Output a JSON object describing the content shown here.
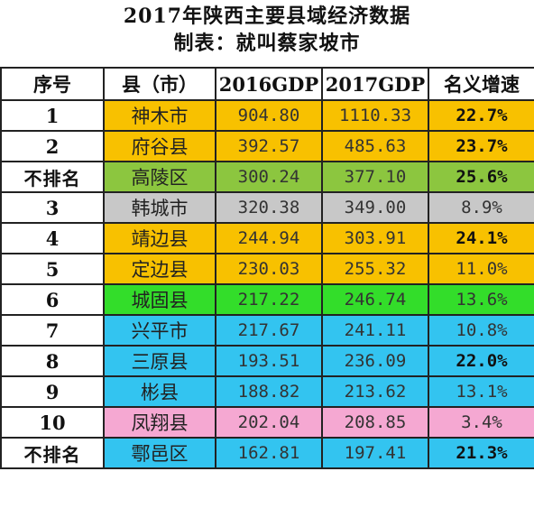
{
  "title_line1": "2017年陕西主要县域经济数据",
  "title_line2": "制表：就叫蔡家坡市",
  "headers": [
    "序号",
    "县（市）",
    "2016GDP",
    "2017GDP",
    "名义增速"
  ],
  "rows": [
    {
      "seq": "1",
      "county": "神木市",
      "gdp2016": "904.80",
      "gdp2017": "1110.33",
      "rate": "22.7%",
      "bold": true,
      "color": "#f8c100"
    },
    {
      "seq": "2",
      "county": "府谷县",
      "gdp2016": "392.57",
      "gdp2017": "485.63",
      "rate": "23.7%",
      "bold": true,
      "color": "#f8c100"
    },
    {
      "seq": "不排名",
      "county": "高陵区",
      "gdp2016": "300.24",
      "gdp2017": "377.10",
      "rate": "25.6%",
      "bold": true,
      "color": "#8cc63f"
    },
    {
      "seq": "3",
      "county": "韩城市",
      "gdp2016": "320.38",
      "gdp2017": "349.00",
      "rate": "8.9%",
      "bold": false,
      "color": "#c8c8c8"
    },
    {
      "seq": "4",
      "county": "靖边县",
      "gdp2016": "244.94",
      "gdp2017": "303.91",
      "rate": "24.1%",
      "bold": true,
      "color": "#f8c100"
    },
    {
      "seq": "5",
      "county": "定边县",
      "gdp2016": "230.03",
      "gdp2017": "255.32",
      "rate": "11.0%",
      "bold": false,
      "color": "#f8c100"
    },
    {
      "seq": "6",
      "county": "城固县",
      "gdp2016": "217.22",
      "gdp2017": "246.74",
      "rate": "13.6%",
      "bold": false,
      "color": "#33dd2a"
    },
    {
      "seq": "7",
      "county": "兴平市",
      "gdp2016": "217.67",
      "gdp2017": "241.11",
      "rate": "10.8%",
      "bold": false,
      "color": "#33c4f0"
    },
    {
      "seq": "8",
      "county": "三原县",
      "gdp2016": "193.51",
      "gdp2017": "236.09",
      "rate": "22.0%",
      "bold": true,
      "color": "#33c4f0"
    },
    {
      "seq": "9",
      "county": "彬县",
      "gdp2016": "188.82",
      "gdp2017": "213.62",
      "rate": "13.1%",
      "bold": false,
      "color": "#33c4f0"
    },
    {
      "seq": "10",
      "county": "凤翔县",
      "gdp2016": "202.04",
      "gdp2017": "208.85",
      "rate": "3.4%",
      "bold": false,
      "color": "#f5a8d2"
    },
    {
      "seq": "不排名",
      "county": "鄠邑区",
      "gdp2016": "162.81",
      "gdp2017": "197.41",
      "rate": "21.3%",
      "bold": true,
      "color": "#33c4f0"
    }
  ]
}
